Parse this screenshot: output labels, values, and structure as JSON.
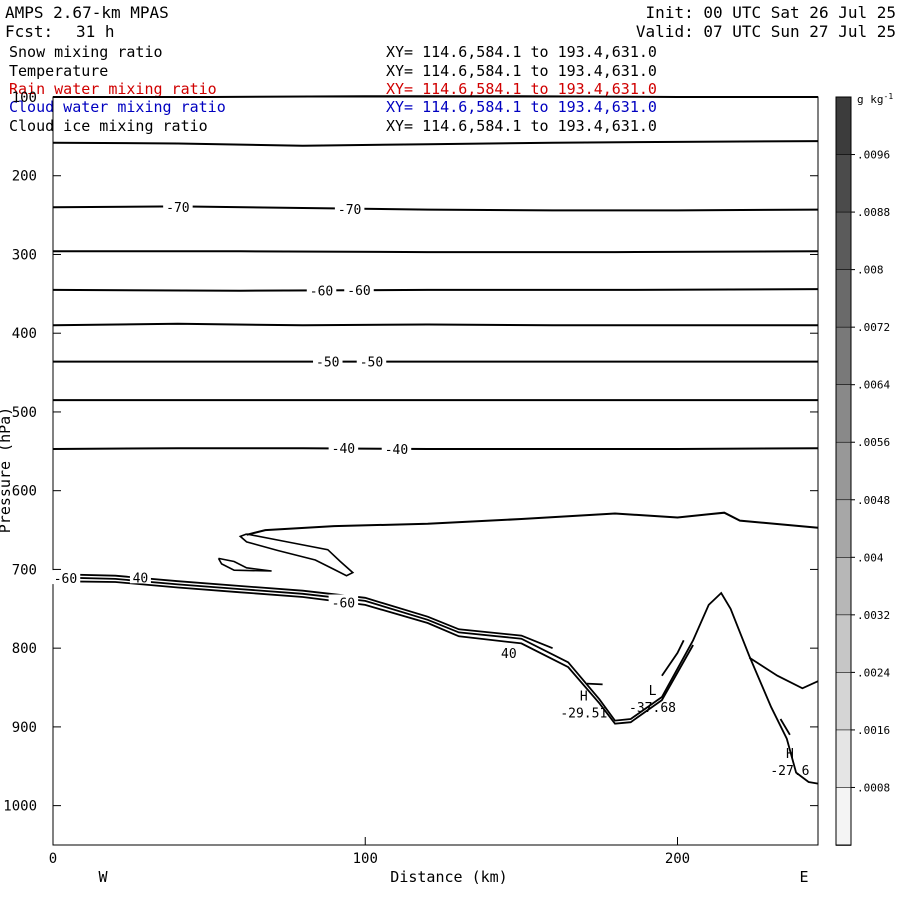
{
  "header": {
    "model": "AMPS 2.67-km MPAS",
    "init": "Init: 00 UTC Sat 26 Jul 25",
    "fcst_label": "Fcst:",
    "fcst_value": "31 h",
    "valid": "Valid: 07 UTC Sun 27 Jul 25"
  },
  "fields": [
    {
      "name": "Snow mixing ratio",
      "xy": "XY= 114.6,584.1 to 193.4,631.0",
      "color": "#000000"
    },
    {
      "name": "Temperature",
      "xy": "XY= 114.6,584.1 to 193.4,631.0",
      "color": "#000000"
    },
    {
      "name": "Rain water mixing ratio",
      "xy": "XY= 114.6,584.1 to 193.4,631.0",
      "color": "#d00000"
    },
    {
      "name": "Cloud water mixing ratio",
      "xy": "XY= 114.6,584.1 to 193.4,631.0",
      "color": "#0000c0"
    },
    {
      "name": "Cloud ice mixing ratio",
      "xy": "XY= 114.6,584.1 to 193.4,631.0",
      "color": "#000000"
    }
  ],
  "chart_data": {
    "type": "contour",
    "xlabel": "Distance (km)",
    "ylabel": "Pressure (hPa)",
    "xlim": [
      0,
      245
    ],
    "ylim": [
      1050,
      100
    ],
    "x_ticks": [
      0,
      100,
      200
    ],
    "y_ticks": [
      100,
      200,
      300,
      400,
      500,
      600,
      700,
      800,
      900,
      1000
    ],
    "x_endpoints": {
      "left": "W",
      "right": "E"
    },
    "colorbar": {
      "unit": "g kg",
      "unit_exponent": "-1",
      "ticks": [
        ".0096",
        ".0088",
        ".008",
        ".0072",
        ".0064",
        ".0056",
        ".0048",
        ".004",
        ".0032",
        ".0024",
        ".0016",
        ".0008"
      ],
      "top": 0.0104,
      "step": 0.0008,
      "gray_dark": "#3c3c3c",
      "gray_light": "#f4f4f4"
    },
    "contour_labels": [
      {
        "text": "-70",
        "x": 40,
        "p": 240
      },
      {
        "text": "-70",
        "x": 95,
        "p": 242
      },
      {
        "text": "-60",
        "x": 86,
        "p": 346
      },
      {
        "text": "-60",
        "x": 98,
        "p": 345
      },
      {
        "text": "-50",
        "x": 88,
        "p": 436
      },
      {
        "text": "-50",
        "x": 102,
        "p": 436
      },
      {
        "text": "-40",
        "x": 93,
        "p": 546
      },
      {
        "text": "-40",
        "x": 110,
        "p": 547
      },
      {
        "text": "-60",
        "x": 4,
        "p": 711
      },
      {
        "text": "40",
        "x": 28,
        "p": 710
      },
      {
        "text": "-60",
        "x": 93,
        "p": 742
      },
      {
        "text": "40",
        "x": 146,
        "p": 806
      }
    ],
    "extrema": [
      {
        "type": "H",
        "value": "-29.51",
        "x": 170,
        "p": 860
      },
      {
        "type": "L",
        "value": "-37.68",
        "x": 192,
        "p": 853
      },
      {
        "type": "H",
        "value": "-27.6",
        "x": 236,
        "p": 933
      }
    ],
    "isotherm_lines": [
      [
        [
          0,
          100
        ],
        [
          50,
          100
        ],
        [
          100,
          99
        ],
        [
          150,
          99
        ],
        [
          200,
          100
        ],
        [
          245,
          100
        ]
      ],
      [
        [
          0,
          158
        ],
        [
          40,
          159
        ],
        [
          80,
          162
        ],
        [
          120,
          160
        ],
        [
          160,
          158
        ],
        [
          200,
          157
        ],
        [
          245,
          156
        ]
      ],
      [
        [
          0,
          240
        ],
        [
          40,
          239
        ],
        [
          80,
          241
        ],
        [
          120,
          243
        ],
        [
          160,
          244
        ],
        [
          200,
          244
        ],
        [
          245,
          243
        ]
      ],
      [
        [
          0,
          296
        ],
        [
          60,
          296
        ],
        [
          120,
          297
        ],
        [
          180,
          297
        ],
        [
          245,
          296
        ]
      ],
      [
        [
          0,
          345
        ],
        [
          60,
          346
        ],
        [
          120,
          345
        ],
        [
          180,
          345
        ],
        [
          245,
          344
        ]
      ],
      [
        [
          0,
          390
        ],
        [
          40,
          388
        ],
        [
          80,
          390
        ],
        [
          120,
          389
        ],
        [
          160,
          390
        ],
        [
          200,
          390
        ],
        [
          245,
          390
        ]
      ],
      [
        [
          0,
          436
        ],
        [
          50,
          436
        ],
        [
          100,
          436
        ],
        [
          150,
          436
        ],
        [
          200,
          436
        ],
        [
          245,
          436
        ]
      ],
      [
        [
          0,
          485
        ],
        [
          60,
          485
        ],
        [
          120,
          485
        ],
        [
          180,
          485
        ],
        [
          245,
          485
        ]
      ],
      [
        [
          0,
          547
        ],
        [
          40,
          546
        ],
        [
          80,
          546
        ],
        [
          120,
          547
        ],
        [
          160,
          547
        ],
        [
          200,
          547
        ],
        [
          245,
          546
        ]
      ],
      [
        [
          62,
          656
        ],
        [
          68,
          650
        ],
        [
          90,
          645
        ],
        [
          120,
          642
        ],
        [
          150,
          636
        ],
        [
          180,
          629
        ],
        [
          200,
          634
        ],
        [
          210,
          630
        ],
        [
          215,
          628
        ],
        [
          220,
          638
        ],
        [
          245,
          647
        ]
      ]
    ],
    "cloud_contours": [
      [
        [
          62,
          655
        ],
        [
          75,
          665
        ],
        [
          88,
          675
        ],
        [
          92,
          690
        ],
        [
          96,
          704
        ],
        [
          94,
          708
        ],
        [
          90,
          700
        ],
        [
          84,
          688
        ],
        [
          72,
          676
        ],
        [
          62,
          665
        ],
        [
          60,
          658
        ],
        [
          62,
          655
        ]
      ],
      [
        [
          53,
          686
        ],
        [
          58,
          690
        ],
        [
          62,
          698
        ],
        [
          70,
          702
        ],
        [
          58,
          701
        ],
        [
          54,
          693
        ],
        [
          53,
          686
        ]
      ]
    ],
    "terrain": [
      [
        [
          0,
          710
        ],
        [
          20,
          712
        ],
        [
          40,
          719
        ],
        [
          60,
          725
        ],
        [
          80,
          731
        ],
        [
          100,
          740
        ],
        [
          120,
          764
        ],
        [
          130,
          780
        ],
        [
          150,
          788
        ],
        [
          165,
          818
        ],
        [
          175,
          865
        ],
        [
          180,
          892
        ],
        [
          185,
          890
        ],
        [
          195,
          862
        ],
        [
          205,
          790
        ],
        [
          210,
          745
        ],
        [
          214,
          730
        ],
        [
          217,
          750
        ],
        [
          223,
          810
        ],
        [
          230,
          875
        ],
        [
          235,
          915
        ],
        [
          238,
          958
        ],
        [
          242,
          970
        ],
        [
          245,
          972
        ]
      ],
      [
        [
          0,
          715
        ],
        [
          20,
          716
        ],
        [
          40,
          723
        ],
        [
          60,
          729
        ],
        [
          80,
          735
        ],
        [
          100,
          745
        ],
        [
          120,
          768
        ],
        [
          130,
          785
        ],
        [
          150,
          794
        ],
        [
          165,
          824
        ],
        [
          175,
          870
        ],
        [
          180,
          896
        ],
        [
          185,
          894
        ],
        [
          195,
          866
        ],
        [
          205,
          796
        ]
      ],
      [
        [
          0,
          706
        ],
        [
          20,
          708
        ],
        [
          40,
          715
        ],
        [
          60,
          721
        ],
        [
          80,
          727
        ],
        [
          100,
          736
        ],
        [
          120,
          760
        ],
        [
          130,
          776
        ],
        [
          150,
          784
        ],
        [
          160,
          800
        ]
      ],
      [
        [
          223,
          812
        ],
        [
          232,
          835
        ],
        [
          240,
          851
        ],
        [
          245,
          842
        ]
      ],
      [
        [
          195,
          835
        ],
        [
          200,
          806
        ],
        [
          202,
          790
        ]
      ],
      [
        [
          236,
          910
        ],
        [
          233,
          890
        ]
      ],
      [
        [
          171,
          845
        ],
        [
          176,
          846
        ]
      ]
    ]
  }
}
